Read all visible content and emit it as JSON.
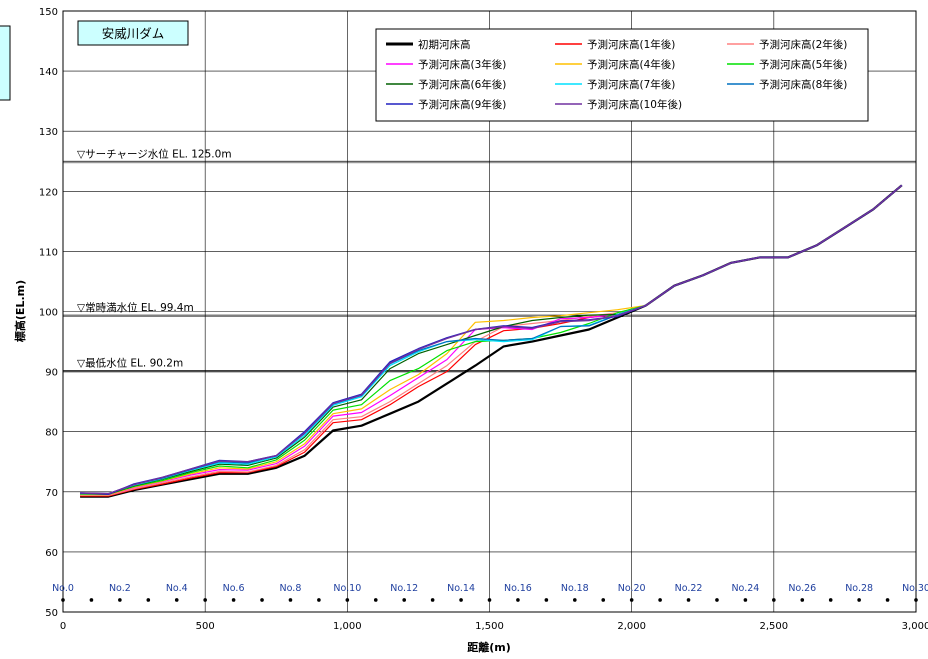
{
  "chart_data": {
    "type": "line",
    "title": "安威川ダム",
    "xlabel": "距離(m)",
    "ylabel": "標高(EL.m)",
    "xlim": [
      0,
      3000
    ],
    "ylim": [
      50,
      150
    ],
    "x_ticks": [
      0,
      500,
      1000,
      1500,
      2000,
      2500,
      3000
    ],
    "x_tick_labels": [
      "0",
      "500",
      "1,000",
      "1,500",
      "2,000",
      "2,500",
      "3,000"
    ],
    "y_ticks": [
      50,
      60,
      70,
      80,
      90,
      100,
      110,
      120,
      130,
      140,
      150
    ],
    "grid": true,
    "legend_position": "top-right",
    "reference_lines": [
      {
        "label": "▽サーチャージ水位  EL.  125.0m",
        "y": 125.0
      },
      {
        "label": "▽常時満水位  EL.  99.4m",
        "y": 99.4
      },
      {
        "label": "▽最低水位  EL.  90.2m",
        "y": 90.2
      }
    ],
    "stations": {
      "labels": [
        "No.0",
        "No.2",
        "No.4",
        "No.6",
        "No.8",
        "No.10",
        "No.12",
        "No.14",
        "No.16",
        "No.18",
        "No.20",
        "No.22",
        "No.24",
        "No.26",
        "No.28",
        "No.30"
      ],
      "label_x": [
        0,
        200,
        400,
        600,
        800,
        1000,
        1200,
        1400,
        1600,
        1800,
        2000,
        2200,
        2400,
        2600,
        2800,
        3000
      ],
      "dot_x": [
        0,
        100,
        200,
        300,
        400,
        500,
        600,
        700,
        800,
        900,
        1000,
        1100,
        1200,
        1300,
        1400,
        1500,
        1600,
        1700,
        1800,
        1900,
        2000,
        2100,
        2200,
        2300,
        2400,
        2500,
        2600,
        2700,
        2800,
        2900,
        3000
      ],
      "dot_y": 52
    },
    "x": [
      60,
      160,
      250,
      350,
      450,
      550,
      650,
      750,
      850,
      950,
      1050,
      1150,
      1250,
      1350,
      1450,
      1550,
      1650,
      1750,
      1850,
      1950,
      2050,
      2150,
      2250,
      2350,
      2450,
      2550,
      2650,
      2750,
      2850,
      2950
    ],
    "series": [
      {
        "name": "初期河床高",
        "color": "#000000",
        "width": 2.2,
        "values": [
          69.2,
          69.2,
          70.3,
          71.2,
          72.1,
          73.0,
          73.0,
          74.0,
          76.0,
          80.2,
          81.0,
          83.0,
          85.0,
          88.0,
          91.0,
          94.2,
          95.0,
          96.0,
          97.0,
          99.0,
          101.0,
          104.3,
          106.0,
          108.1,
          109.0,
          109.0,
          111.0,
          114.0,
          117.0,
          121.0
        ]
      },
      {
        "name": "予測河床高(1年後)",
        "color": "#ff0000",
        "width": 1.2,
        "values": [
          69.3,
          69.3,
          70.4,
          71.3,
          72.3,
          73.2,
          73.2,
          74.2,
          76.6,
          81.5,
          82.0,
          84.5,
          87.5,
          90.0,
          94.5,
          96.8,
          97.2,
          98.0,
          99.0,
          99.5,
          101.0,
          104.3,
          106.0,
          108.1,
          109.0,
          109.0,
          111.0,
          114.0,
          117.0,
          121.0
        ]
      },
      {
        "name": "予測河床高(2年後)",
        "color": "#ff8080",
        "width": 1.2,
        "values": [
          69.4,
          69.4,
          70.5,
          71.5,
          72.5,
          73.4,
          73.3,
          74.4,
          77.0,
          82.0,
          82.5,
          85.0,
          88.0,
          91.0,
          95.0,
          97.5,
          98.0,
          98.5,
          99.2,
          99.8,
          101.0,
          104.3,
          106.0,
          108.1,
          109.0,
          109.0,
          111.0,
          114.0,
          117.0,
          121.0
        ]
      },
      {
        "name": "予測河床高(3年後)",
        "color": "#ff00ff",
        "width": 1.2,
        "values": [
          69.5,
          69.5,
          70.7,
          71.7,
          72.8,
          73.7,
          73.6,
          74.7,
          77.6,
          82.6,
          83.2,
          86.0,
          89.0,
          92.0,
          97.0,
          97.3,
          97.0,
          98.8,
          99.0,
          99.5,
          101.0,
          104.3,
          106.0,
          108.1,
          109.0,
          109.0,
          111.0,
          114.0,
          117.0,
          121.0
        ]
      },
      {
        "name": "予測河床高(4年後)",
        "color": "#ffc000",
        "width": 1.2,
        "values": [
          69.5,
          69.5,
          70.8,
          71.8,
          73.0,
          74.0,
          73.8,
          75.0,
          78.0,
          83.0,
          83.8,
          87.0,
          89.5,
          93.0,
          98.2,
          98.5,
          99.0,
          99.3,
          99.8,
          100.3,
          101.0,
          104.3,
          106.0,
          108.1,
          109.0,
          109.0,
          111.0,
          114.0,
          117.0,
          121.0
        ]
      },
      {
        "name": "予測河床高(5年後)",
        "color": "#00e000",
        "width": 1.2,
        "values": [
          69.6,
          69.6,
          70.9,
          71.9,
          73.2,
          74.3,
          74.0,
          75.3,
          78.6,
          83.6,
          84.5,
          88.5,
          90.5,
          93.5,
          95.0,
          95.2,
          95.5,
          96.5,
          98.0,
          99.8,
          101.0,
          104.3,
          106.0,
          108.1,
          109.0,
          109.0,
          111.0,
          114.0,
          117.0,
          121.0
        ]
      },
      {
        "name": "予測河床高(6年後)",
        "color": "#006000",
        "width": 1.2,
        "values": [
          69.7,
          69.6,
          71.0,
          72.1,
          73.4,
          74.6,
          74.4,
          75.6,
          79.1,
          84.1,
          85.3,
          90.5,
          93.0,
          94.5,
          96.0,
          97.5,
          98.5,
          99.0,
          99.4,
          99.5,
          101.0,
          104.3,
          106.0,
          108.1,
          109.0,
          109.0,
          111.0,
          114.0,
          117.0,
          121.0
        ]
      },
      {
        "name": "予測河床高(7年後)",
        "color": "#00e0ff",
        "width": 1.2,
        "values": [
          69.7,
          69.7,
          71.1,
          72.2,
          73.6,
          74.8,
          74.6,
          75.8,
          79.4,
          84.4,
          85.8,
          91.0,
          93.3,
          95.0,
          95.3,
          95.0,
          95.3,
          97.5,
          97.7,
          99.5,
          101.0,
          104.3,
          106.0,
          108.1,
          109.0,
          109.0,
          111.0,
          114.0,
          117.0,
          121.0
        ]
      },
      {
        "name": "予測河床高(8年後)",
        "color": "#0070c0",
        "width": 1.2,
        "values": [
          69.8,
          69.7,
          71.2,
          72.3,
          73.7,
          75.0,
          74.8,
          76.0,
          79.7,
          84.6,
          86.0,
          91.3,
          93.5,
          95.0,
          95.5,
          95.2,
          95.5,
          97.5,
          97.6,
          99.4,
          101.0,
          104.3,
          106.0,
          108.1,
          109.0,
          109.0,
          111.0,
          114.0,
          117.0,
          121.0
        ]
      },
      {
        "name": "予測河床高(9年後)",
        "color": "#2020c0",
        "width": 1.6,
        "values": [
          69.8,
          69.6,
          71.3,
          72.4,
          73.8,
          75.2,
          75.0,
          76.0,
          80.0,
          84.8,
          86.2,
          91.6,
          93.8,
          95.6,
          97.0,
          97.6,
          97.3,
          98.4,
          98.6,
          99.2,
          101.0,
          104.3,
          106.0,
          108.1,
          109.0,
          109.0,
          111.0,
          114.0,
          117.0,
          121.0
        ]
      },
      {
        "name": "予測河床高(10年後)",
        "color": "#7030a0",
        "width": 1.4,
        "values": [
          69.8,
          69.7,
          71.2,
          72.4,
          73.8,
          75.1,
          75.0,
          76.0,
          79.8,
          84.7,
          86.1,
          91.4,
          93.7,
          95.5,
          97.0,
          97.5,
          97.2,
          98.3,
          98.5,
          99.3,
          101.0,
          104.3,
          106.0,
          108.1,
          109.0,
          109.0,
          111.0,
          114.0,
          117.0,
          121.0
        ]
      }
    ]
  }
}
